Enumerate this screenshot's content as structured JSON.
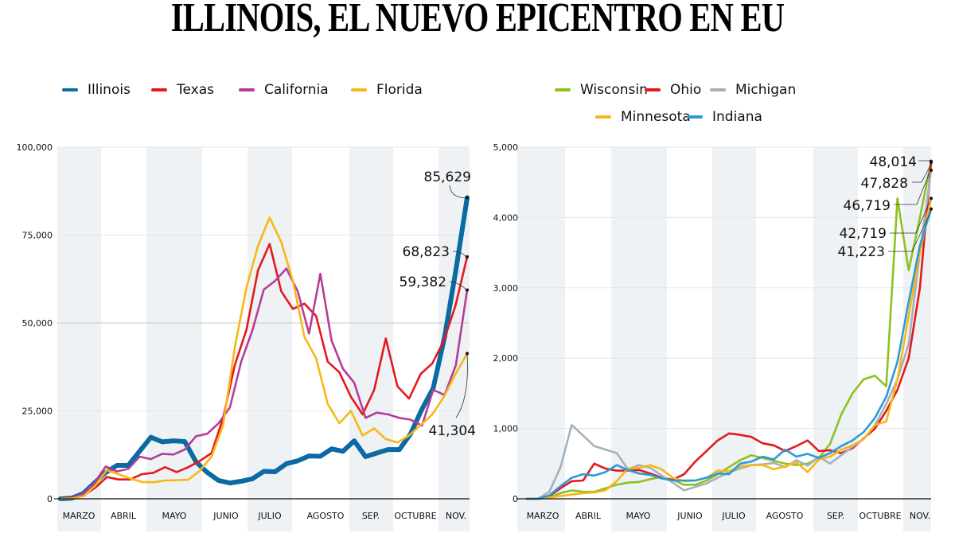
{
  "title": "ILLINOIS, EL NUEVO EPICENTRO EN EU",
  "chart_data": [
    {
      "type": "line",
      "id": "left",
      "title": "",
      "xlabel": "",
      "ylabel": "",
      "ylim": [
        0,
        100000
      ],
      "yticks": [
        0,
        25000,
        50000,
        75000,
        100000
      ],
      "ytick_labels": [
        "0",
        "25,000",
        "50,000",
        "75,000",
        "100,000"
      ],
      "months": [
        "MARZO",
        "ABRIL",
        "MAYO",
        "JUNIO",
        "JULIO",
        "AGOSTO",
        "SEP.",
        "OCTUBRE",
        "NOV."
      ],
      "grid": true,
      "legend_position": "top",
      "series": [
        {
          "name": "Illinois",
          "color": "#0a6aa1",
          "values": [
            0,
            200,
            1500,
            4500,
            7500,
            9500,
            9500,
            13500,
            17500,
            16200,
            16500,
            16300,
            10500,
            7500,
            5200,
            4500,
            5000,
            5700,
            7800,
            7700,
            10000,
            10800,
            12200,
            12100,
            14200,
            13500,
            16500,
            12000,
            13000,
            14000,
            14000,
            18500,
            25500,
            31500,
            46000,
            65000,
            85629
          ]
        },
        {
          "name": "Texas",
          "color": "#e3191c",
          "values": [
            0,
            300,
            1000,
            3200,
            6200,
            5500,
            5500,
            7000,
            7400,
            9000,
            7600,
            9000,
            10800,
            13000,
            23000,
            38000,
            48000,
            65000,
            72500,
            59000,
            54000,
            55500,
            52000,
            39000,
            36000,
            29000,
            24000,
            31000,
            45600,
            32000,
            28500,
            35500,
            38500,
            45000,
            55000,
            68823
          ]
        },
        {
          "name": "California",
          "color": "#b73c9a",
          "values": [
            0,
            200,
            1500,
            4500,
            9200,
            7800,
            8500,
            12000,
            11300,
            12800,
            12600,
            14000,
            17800,
            18500,
            21500,
            26000,
            39000,
            48000,
            59500,
            62000,
            65500,
            59000,
            47000,
            64000,
            45000,
            37000,
            33000,
            23000,
            24500,
            24000,
            23000,
            22500,
            20800,
            31000,
            29500,
            38000,
            59382
          ]
        },
        {
          "name": "Florida",
          "color": "#f7b717",
          "values": [
            0,
            100,
            800,
            3800,
            8200,
            7000,
            5800,
            4800,
            4700,
            5200,
            5300,
            5400,
            8000,
            12000,
            21000,
            43000,
            60000,
            72000,
            80000,
            73000,
            62000,
            46000,
            40000,
            27000,
            21500,
            25000,
            18000,
            20000,
            17000,
            16000,
            18000,
            21000,
            24000,
            29000,
            35500,
            41304
          ]
        }
      ],
      "annotations": [
        {
          "series": "Illinois",
          "label": "85,629"
        },
        {
          "series": "Texas",
          "label": "68,823"
        },
        {
          "series": "California",
          "label": "59,382"
        },
        {
          "series": "Florida",
          "label": "41,304"
        }
      ]
    },
    {
      "type": "line",
      "id": "right",
      "title": "",
      "xlabel": "",
      "ylabel": "",
      "ylim": [
        0,
        5000
      ],
      "yticks": [
        0,
        1000,
        2000,
        3000,
        4000,
        5000
      ],
      "ytick_labels": [
        "0",
        "1,000",
        "2,000",
        "3,000",
        "4,000",
        "5,000"
      ],
      "months": [
        "MARZO",
        "ABRIL",
        "MAYO",
        "JUNIO",
        "JULIO",
        "AGOSTO",
        "SEP.",
        "OCTUBRE",
        "NOV."
      ],
      "grid": true,
      "legend_position": "top",
      "series": [
        {
          "name": "Wisconsin",
          "color": "#8cc220",
          "values": [
            0,
            0,
            20,
            80,
            120,
            100,
            100,
            150,
            200,
            230,
            240,
            280,
            310,
            270,
            200,
            200,
            260,
            350,
            450,
            550,
            620,
            580,
            540,
            500,
            480,
            500,
            580,
            780,
            1200,
            1500,
            1700,
            1750,
            1600,
            4270,
            3250,
            4000,
            4801
          ]
        },
        {
          "name": "Ohio",
          "color": "#e3191c",
          "values": [
            0,
            0,
            40,
            150,
            250,
            260,
            500,
            430,
            400,
            400,
            410,
            360,
            300,
            270,
            350,
            530,
            680,
            830,
            930,
            910,
            880,
            790,
            760,
            680,
            750,
            830,
            680,
            690,
            650,
            720,
            860,
            1000,
            1250,
            1550,
            2000,
            3000,
            4783
          ]
        },
        {
          "name": "Michigan",
          "color": "#a5b1ba",
          "values": [
            0,
            0,
            100,
            450,
            1050,
            900,
            750,
            700,
            650,
            420,
            480,
            440,
            330,
            230,
            120,
            170,
            220,
            300,
            380,
            430,
            480,
            490,
            510,
            450,
            550,
            470,
            600,
            500,
            620,
            740,
            850,
            1050,
            1350,
            1700,
            2200,
            3500,
            4672
          ]
        },
        {
          "name": "Minnesota",
          "color": "#f7b717",
          "values": [
            0,
            0,
            20,
            40,
            60,
            80,
            90,
            120,
            250,
            430,
            440,
            480,
            420,
            300,
            250,
            260,
            300,
            400,
            390,
            460,
            480,
            480,
            420,
            460,
            520,
            380,
            560,
            600,
            700,
            760,
            850,
            1050,
            1100,
            1700,
            2600,
            3500,
            4272
          ]
        },
        {
          "name": "Indiana",
          "color": "#2b9ad8",
          "values": [
            0,
            0,
            50,
            180,
            300,
            350,
            330,
            380,
            480,
            410,
            360,
            340,
            290,
            260,
            260,
            260,
            300,
            360,
            350,
            500,
            530,
            600,
            560,
            700,
            600,
            640,
            580,
            650,
            750,
            830,
            950,
            1150,
            1450,
            1950,
            2800,
            3600,
            4122
          ]
        }
      ],
      "annotations": [
        {
          "series": "Wisconsin",
          "label": "48,014"
        },
        {
          "series": "Ohio",
          "label": "47,828"
        },
        {
          "series": "Michigan",
          "label": "46,719"
        },
        {
          "series": "Minnesota",
          "label": "42,719"
        },
        {
          "series": "Indiana",
          "label": "41,223"
        }
      ]
    }
  ]
}
